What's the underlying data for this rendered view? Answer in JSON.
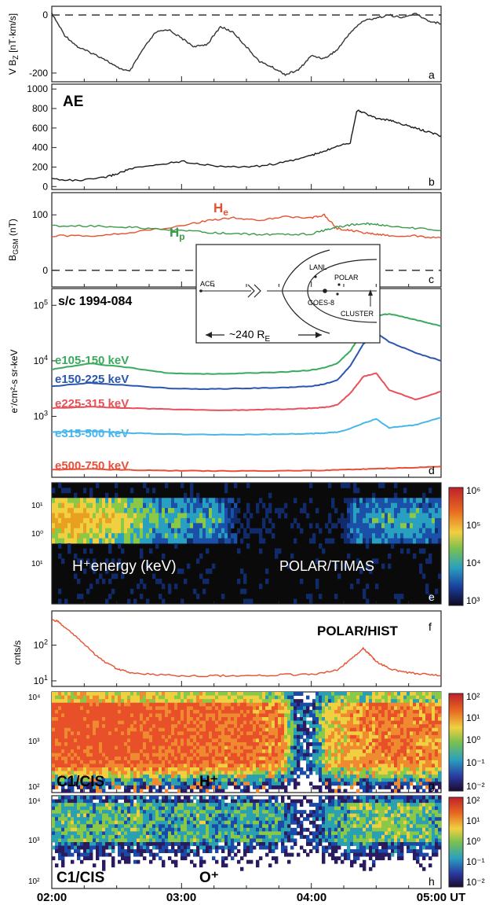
{
  "timeline": {
    "start_hour": 2,
    "end_hour": 5,
    "tick_labels": [
      "02:00",
      "03:00",
      "04:00",
      "05:00 UT"
    ]
  },
  "chart_data": [
    {
      "id": "a",
      "type": "line",
      "ylabel": "V B",
      "ylabel_sub": "Z",
      "ylabel_unit": " [nT·km/s]",
      "letter": "a",
      "ylim": [
        -230,
        30
      ],
      "yticks": [
        0,
        -200
      ],
      "ytick_labels": [
        "0",
        "-200"
      ],
      "reference_lines": [
        0
      ],
      "series": [
        {
          "color": "#333333",
          "x": [
            2.0,
            2.1,
            2.2,
            2.3,
            2.4,
            2.5,
            2.6,
            2.7,
            2.8,
            2.9,
            3.0,
            3.1,
            3.2,
            3.3,
            3.4,
            3.5,
            3.6,
            3.7,
            3.8,
            3.9,
            4.0,
            4.1,
            4.2,
            4.3,
            4.4,
            4.5,
            4.6,
            4.7,
            4.8,
            4.9,
            5.0
          ],
          "y": [
            5,
            -70,
            -110,
            -130,
            -150,
            -180,
            -195,
            -120,
            -60,
            -50,
            -80,
            -110,
            -100,
            -40,
            -60,
            -110,
            -160,
            -180,
            -205,
            -190,
            -140,
            -150,
            -120,
            -60,
            -20,
            -10,
            0,
            -10,
            5,
            -20,
            -30
          ]
        }
      ]
    },
    {
      "id": "b",
      "type": "line",
      "title": "AE",
      "letter": "b",
      "ylim": [
        -30,
        1050
      ],
      "yticks": [
        0,
        200,
        400,
        600,
        800,
        1000
      ],
      "ytick_labels": [
        "0",
        "200",
        "400",
        "600",
        "800",
        "1000"
      ],
      "series": [
        {
          "color": "#1a1a1a",
          "x": [
            2.0,
            2.2,
            2.4,
            2.5,
            2.6,
            2.8,
            3.0,
            3.2,
            3.4,
            3.6,
            3.8,
            4.0,
            4.1,
            4.2,
            4.3,
            4.35,
            4.4,
            4.5,
            4.6,
            4.7,
            4.8,
            4.9,
            5.0
          ],
          "y": [
            80,
            60,
            90,
            130,
            180,
            220,
            260,
            220,
            200,
            210,
            250,
            320,
            360,
            420,
            450,
            780,
            760,
            700,
            680,
            640,
            600,
            560,
            520
          ]
        }
      ]
    },
    {
      "id": "c",
      "type": "line",
      "ylabel": "B",
      "ylabel_sub": "GSM",
      "ylabel_unit": " (nT)",
      "letter": "c",
      "ylim": [
        -30,
        140
      ],
      "yticks": [
        0,
        100
      ],
      "ytick_labels": [
        "0",
        "100"
      ],
      "reference_lines": [
        0
      ],
      "series": [
        {
          "name": "H",
          "name_sub": "e",
          "color": "#e8502e",
          "x": [
            2.0,
            2.3,
            2.6,
            3.0,
            3.2,
            3.4,
            3.6,
            3.8,
            4.0,
            4.1,
            4.2,
            4.3,
            4.4,
            4.5,
            4.6,
            4.8,
            5.0
          ],
          "y": [
            62,
            62,
            68,
            80,
            90,
            95,
            90,
            97,
            94,
            100,
            75,
            72,
            68,
            65,
            62,
            62,
            58
          ]
        },
        {
          "name": "H",
          "name_sub": "p",
          "color": "#3a9a4a",
          "x": [
            2.0,
            2.3,
            2.6,
            2.8,
            3.0,
            3.2,
            3.4,
            3.6,
            3.8,
            4.0,
            4.1,
            4.2,
            4.3,
            4.4,
            4.5,
            4.6,
            4.8,
            5.0
          ],
          "y": [
            80,
            80,
            78,
            74,
            72,
            68,
            66,
            65,
            64,
            66,
            72,
            78,
            82,
            84,
            83,
            80,
            76,
            72
          ]
        }
      ]
    },
    {
      "id": "d",
      "type": "line",
      "title": "s/c 1994-084",
      "ylabel": "e",
      "ylabel_sup": "-",
      "ylabel_unit": "/cm²-s sr-keV",
      "letter": "d",
      "log_y": true,
      "ylim": [
        80,
        200000
      ],
      "yticks": [
        1000,
        10000,
        100000
      ],
      "series": [
        {
          "name": "e105-150 keV",
          "color": "#3aaa5e",
          "x": [
            2.0,
            2.3,
            2.6,
            2.9,
            3.2,
            3.5,
            3.8,
            4.0,
            4.1,
            4.2,
            4.3,
            4.4,
            4.5,
            4.6,
            4.8,
            5.0
          ],
          "y": [
            7000,
            9000,
            7500,
            6000,
            5800,
            6000,
            6300,
            6800,
            7500,
            9000,
            15000,
            35000,
            65000,
            70000,
            55000,
            42000
          ]
        },
        {
          "name": "e150-225 keV",
          "color": "#2a56b0",
          "x": [
            2.0,
            2.3,
            2.6,
            2.9,
            3.2,
            3.5,
            3.8,
            4.0,
            4.1,
            4.2,
            4.3,
            4.4,
            4.5,
            4.6,
            4.8,
            5.0
          ],
          "y": [
            3500,
            4000,
            3600,
            3200,
            3100,
            3200,
            3300,
            3500,
            3800,
            4500,
            8000,
            20000,
            32000,
            22000,
            14000,
            10000
          ]
        },
        {
          "name": "e225-315 keV",
          "color": "#e8505a",
          "x": [
            2.0,
            2.3,
            2.6,
            2.9,
            3.2,
            3.5,
            3.8,
            4.0,
            4.1,
            4.2,
            4.3,
            4.4,
            4.5,
            4.6,
            4.8,
            5.0
          ],
          "y": [
            1400,
            1500,
            1400,
            1350,
            1300,
            1300,
            1350,
            1400,
            1450,
            1600,
            2600,
            5200,
            6000,
            3000,
            2000,
            2800
          ]
        },
        {
          "name": "e315-500 keV",
          "color": "#49b6ea",
          "x": [
            2.0,
            2.3,
            2.6,
            2.9,
            3.2,
            3.5,
            3.8,
            4.0,
            4.1,
            4.2,
            4.3,
            4.4,
            4.5,
            4.6,
            4.8,
            5.0
          ],
          "y": [
            520,
            540,
            500,
            480,
            470,
            470,
            480,
            490,
            500,
            520,
            600,
            750,
            900,
            620,
            700,
            950
          ]
        },
        {
          "name": "e500-750 keV",
          "color": "#e8503a",
          "x": [
            2.0,
            2.3,
            2.6,
            2.9,
            3.2,
            3.5,
            3.8,
            4.0,
            4.2,
            4.4,
            4.6,
            4.8,
            5.0
          ],
          "y": [
            110,
            112,
            108,
            105,
            104,
            104,
            105,
            106,
            108,
            112,
            116,
            120,
            125
          ]
        }
      ]
    },
    {
      "id": "e",
      "type": "heatmap",
      "letter": "e",
      "left_label": "H⁺energy (keV)",
      "right_label": "POLAR/TIMAS",
      "ytick_labels": [
        "10¹",
        "10⁰",
        "10¹"
      ],
      "colorbar_labels": [
        "10⁶",
        "10⁵",
        "10⁴",
        "10³"
      ],
      "activity": [
        0.9,
        0.95,
        0.9,
        0.85,
        0.8,
        0.75,
        0.65,
        0.6,
        0.55,
        0.5,
        0.45,
        0.55,
        0.4,
        0.1,
        0.05,
        0.05,
        0.05,
        0.05,
        0.05,
        0.05,
        0.05,
        0.4,
        0.45,
        0.5,
        0.45,
        0.5,
        0.45,
        0.4
      ]
    },
    {
      "id": "f",
      "type": "line",
      "title": "POLAR/HIST",
      "ylabel": "cnts/s",
      "letter": "f",
      "log_y": true,
      "ylim": [
        7,
        900
      ],
      "yticks": [
        10,
        100
      ],
      "series": [
        {
          "color": "#e8502e",
          "x": [
            2.0,
            2.05,
            2.1,
            2.2,
            2.3,
            2.4,
            2.5,
            2.6,
            2.8,
            3.0,
            3.2,
            3.4,
            3.6,
            3.8,
            4.0,
            4.2,
            4.3,
            4.4,
            4.45,
            4.5,
            4.6,
            4.7,
            4.8,
            4.9,
            5.0
          ],
          "y": [
            500,
            450,
            320,
            160,
            70,
            35,
            22,
            17,
            15,
            14,
            14,
            14,
            14,
            15,
            15,
            20,
            40,
            80,
            55,
            35,
            22,
            18,
            16,
            15,
            14
          ]
        }
      ]
    },
    {
      "id": "g",
      "type": "heatmap",
      "letter": "g",
      "left_label": "C1/CIS",
      "species_label": "H⁺",
      "ytick_labels": [
        "10⁴",
        "10³",
        "10²"
      ],
      "colorbar_labels": [
        "10²",
        "10¹",
        "10⁰",
        "10⁻¹",
        "10⁻²"
      ],
      "activity": [
        0.92,
        0.95,
        0.95,
        0.93,
        0.95,
        0.93,
        0.9,
        0.92,
        0.9,
        0.88,
        0.9,
        0.88,
        0.85,
        0.88,
        0.85,
        0.8,
        0.82,
        0.3,
        0.25,
        0.6,
        0.7,
        0.75,
        0.8,
        0.82,
        0.85,
        0.82,
        0.8,
        0.78
      ]
    },
    {
      "id": "h",
      "type": "heatmap",
      "letter": "h",
      "left_label": "C1/CIS",
      "species_label": "O⁺",
      "ytick_labels": [
        "10⁴",
        "10³",
        "10²"
      ],
      "colorbar_labels": [
        "10²",
        "10¹",
        "10⁰",
        "10⁻¹",
        "10⁻²"
      ],
      "activity": [
        0.45,
        0.5,
        0.5,
        0.45,
        0.5,
        0.45,
        0.5,
        0.45,
        0.4,
        0.45,
        0.5,
        0.45,
        0.4,
        0.45,
        0.4,
        0.45,
        0.4,
        0.2,
        0.2,
        0.35,
        0.45,
        0.5,
        0.55,
        0.5,
        0.55,
        0.5,
        0.5,
        0.45
      ]
    }
  ],
  "inset": {
    "labels": [
      "ACE",
      "LANL",
      "POLAR",
      "GOES-8",
      "CLUSTER"
    ],
    "distance": "~240 R",
    "distance_sub": "E"
  }
}
